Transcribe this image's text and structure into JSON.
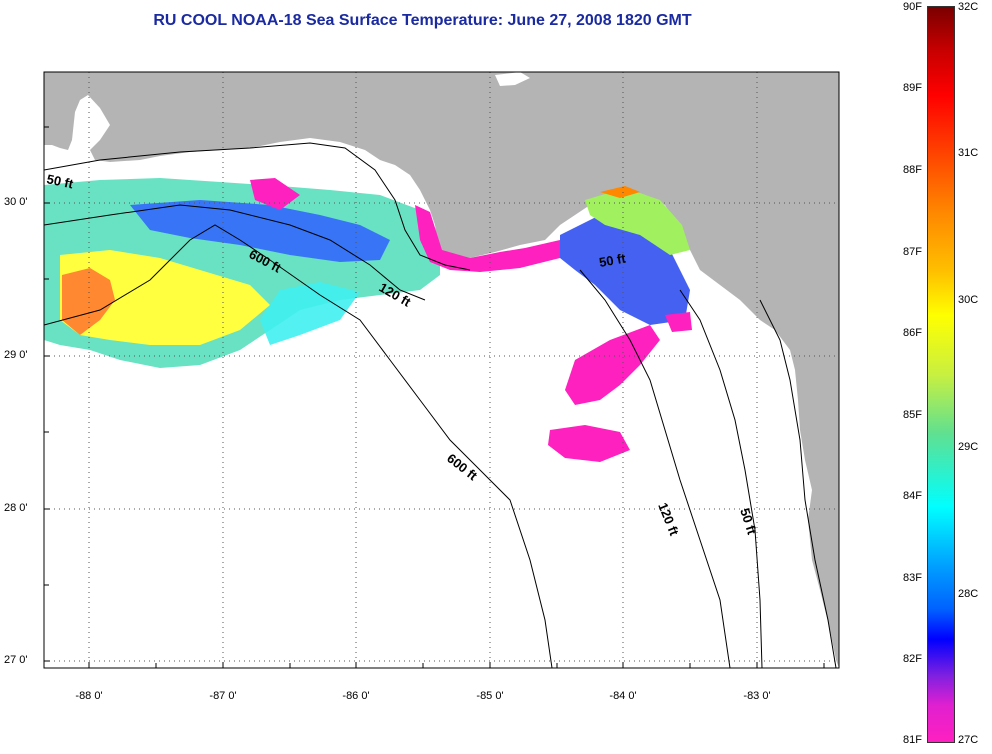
{
  "title": "RU COOL  NOAA-18  Sea Surface Temperature:  June 27, 2008 1820 GMT",
  "axes": {
    "lat_labels": [
      "30 0'",
      "29 0'",
      "28 0'",
      "27 0'"
    ],
    "lon_labels": [
      "-88 0'",
      "-87 0'",
      "-86 0'",
      "-85 0'",
      "-84 0'",
      "-83 0'"
    ]
  },
  "isobaths": [
    "50 ft",
    "600 ft",
    "120 ft",
    "50 ft",
    "600 ft",
    "120 ft",
    "50 ft"
  ],
  "colorbar": {
    "fahrenheit": [
      "90F",
      "89F",
      "88F",
      "87F",
      "86F",
      "85F",
      "84F",
      "83F",
      "82F",
      "81F"
    ],
    "celsius": [
      "32C",
      "31C",
      "30C",
      "29C",
      "28C",
      "27C"
    ]
  },
  "colors": {
    "land": "#b4b4b4",
    "title": "#1a2aa0",
    "warm": "#ff8800",
    "mid": "#ffff00",
    "cool": "#00ffff",
    "cold": "#0000ff",
    "coldest": "#ff20c0"
  }
}
